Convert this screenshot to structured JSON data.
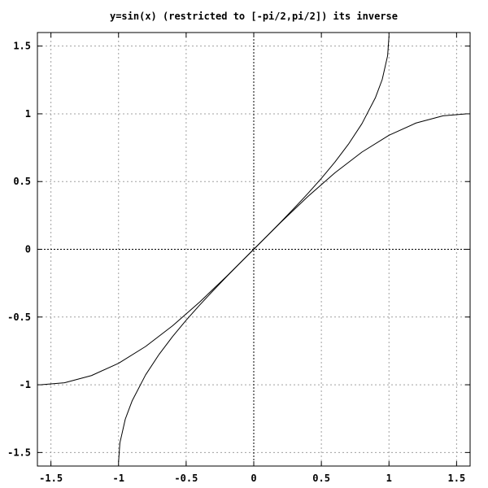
{
  "chart_data": {
    "type": "line",
    "title": "y=sin(x) (restricted to [-pi/2,pi/2]) its inverse",
    "xlabel": "",
    "ylabel": "",
    "xlim": [
      -1.6,
      1.6
    ],
    "ylim": [
      -1.6,
      1.6
    ],
    "grid": true,
    "legend": "none",
    "x_ticks": [
      {
        "value": -1.5,
        "label": "-1.5"
      },
      {
        "value": -1,
        "label": "-1"
      },
      {
        "value": -0.5,
        "label": "-0.5"
      },
      {
        "value": 0,
        "label": "0"
      },
      {
        "value": 0.5,
        "label": "0.5"
      },
      {
        "value": 1,
        "label": "1"
      },
      {
        "value": 1.5,
        "label": "1.5"
      }
    ],
    "y_ticks": [
      {
        "value": -1.5,
        "label": "-1.5"
      },
      {
        "value": -1,
        "label": "-1"
      },
      {
        "value": -0.5,
        "label": "-0.5"
      },
      {
        "value": 0,
        "label": "0"
      },
      {
        "value": 0.5,
        "label": "0.5"
      },
      {
        "value": 1,
        "label": "1"
      },
      {
        "value": 1.5,
        "label": "1.5"
      }
    ],
    "series": [
      {
        "x": [
          -1.5708,
          -1.4,
          -1.2,
          -1.0,
          -0.8,
          -0.6,
          -0.4,
          -0.2,
          0,
          0.2,
          0.4,
          0.6,
          0.8,
          1.0,
          1.2,
          1.4,
          1.5708
        ],
        "y": [
          -1.0,
          -0.9854,
          -0.932,
          -0.8415,
          -0.7174,
          -0.5646,
          -0.3894,
          -0.1987,
          0,
          0.1987,
          0.3894,
          0.5646,
          0.7174,
          0.8415,
          0.932,
          0.9854,
          1.0
        ]
      },
      {
        "x": [
          -1.0,
          -0.99,
          -0.95,
          -0.9,
          -0.8,
          -0.7,
          -0.6,
          -0.5,
          -0.4,
          -0.3,
          -0.2,
          -0.1,
          0,
          0.1,
          0.2,
          0.3,
          0.4,
          0.5,
          0.6,
          0.7,
          0.8,
          0.9,
          0.95,
          0.99,
          1.0
        ],
        "y": [
          -1.5708,
          -1.4293,
          -1.2532,
          -1.1198,
          -0.9273,
          -0.7754,
          -0.6435,
          -0.5236,
          -0.4115,
          -0.3047,
          -0.2014,
          -0.1002,
          0,
          0.1002,
          0.2014,
          0.3047,
          0.4115,
          0.5236,
          0.6435,
          0.7754,
          0.9273,
          1.1198,
          1.2532,
          1.4293,
          1.5708
        ]
      }
    ],
    "colors": {
      "line": "#000000",
      "grid": "#a0a0a0",
      "axis": "#000000",
      "background": "#ffffff"
    }
  }
}
